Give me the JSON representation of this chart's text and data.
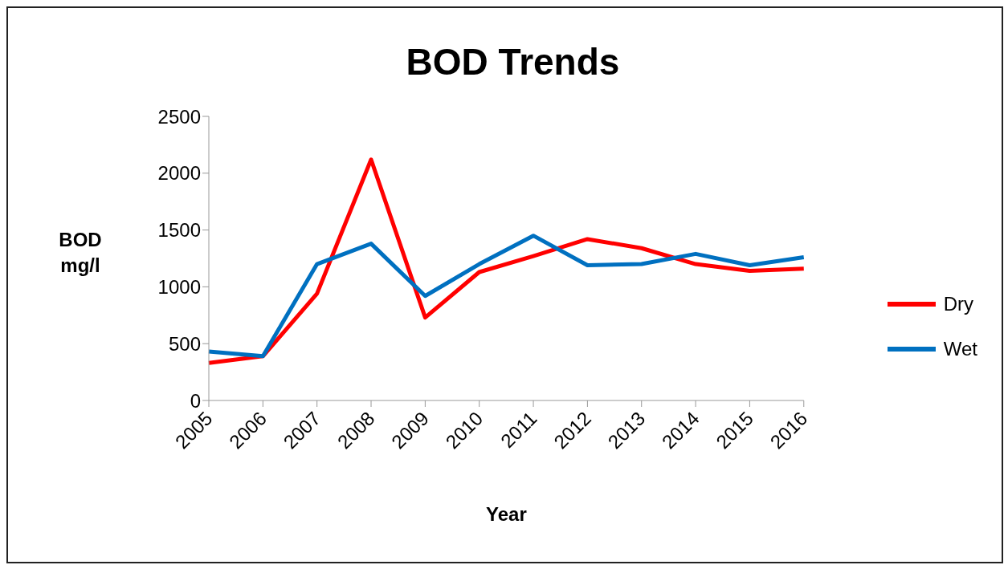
{
  "chart_data": {
    "type": "line",
    "title": "BOD Trends",
    "xlabel": "Year",
    "ylabel": "BOD mg/l",
    "categories": [
      "2005",
      "2006",
      "2007",
      "2008",
      "2009",
      "2010",
      "2011",
      "2012",
      "2013",
      "2014",
      "2015",
      "2016"
    ],
    "series": [
      {
        "name": "Dry",
        "color": "#ff0000",
        "values": [
          330,
          390,
          940,
          2120,
          730,
          1130,
          1270,
          1420,
          1340,
          1200,
          1140,
          1160
        ]
      },
      {
        "name": "Wet",
        "color": "#0070c0",
        "values": [
          430,
          390,
          1200,
          1380,
          920,
          1200,
          1450,
          1190,
          1200,
          1290,
          1190,
          1260
        ]
      }
    ],
    "ylim": [
      0,
      2500
    ],
    "yticks": [
      0,
      500,
      1000,
      1500,
      2000,
      2500
    ],
    "grid": false,
    "legend": "right",
    "marker": "none",
    "line_style": "solid"
  }
}
